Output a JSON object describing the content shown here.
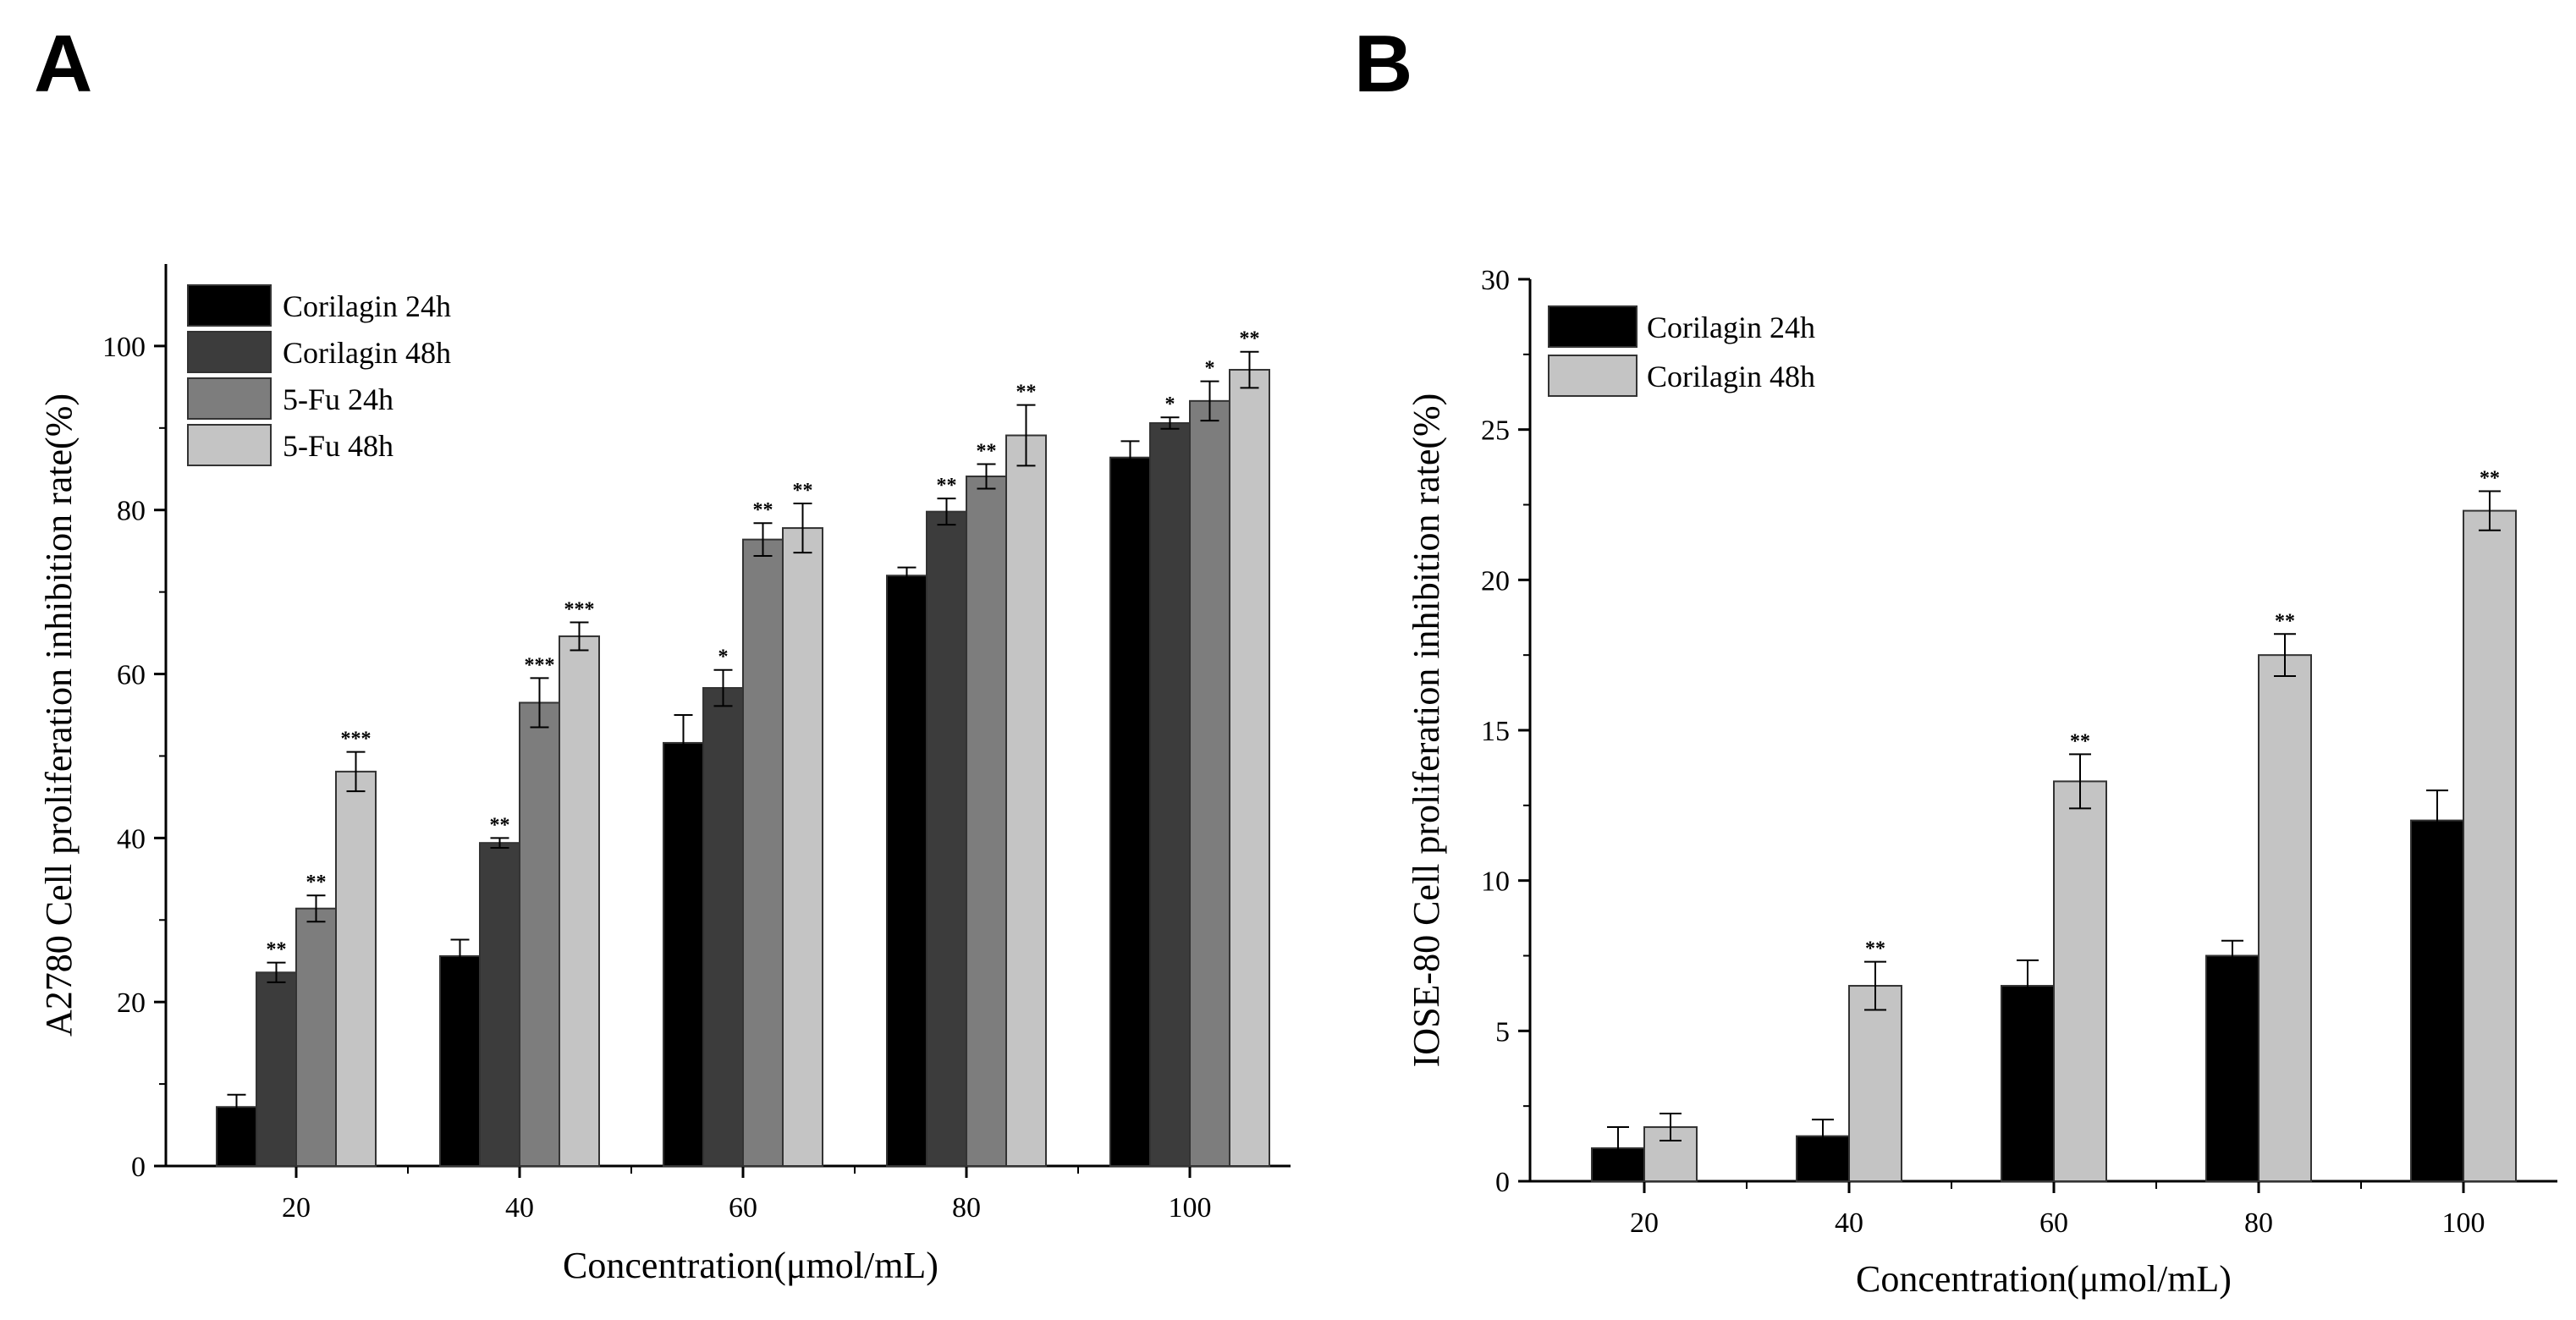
{
  "chart_data": [
    {
      "panel": "A",
      "type": "bar",
      "categories": [
        "20",
        "40",
        "60",
        "80",
        "100"
      ],
      "xlabel": "Concentration(μmol/mL)",
      "ylabel": "A2780 Cell proliferation inhibition rate(%)",
      "ylim": [
        0,
        110
      ],
      "yticks": [
        0,
        20,
        40,
        60,
        80,
        100
      ],
      "legend_position": "top-left",
      "series": [
        {
          "name": "Corilagin 24h",
          "color": "#000000",
          "values": [
            7.2,
            25.6,
            51.6,
            72.0,
            86.4
          ],
          "errors": [
            1.5,
            2.0,
            3.4,
            1.0,
            2.0
          ],
          "sig": [
            "",
            "",
            "",
            "",
            ""
          ]
        },
        {
          "name": "Corilagin 48h",
          "color": "#3c3c3c",
          "values": [
            23.6,
            39.4,
            58.3,
            79.8,
            90.6
          ],
          "errors": [
            1.2,
            0.6,
            2.2,
            1.6,
            0.7
          ],
          "sig": [
            "**",
            "**",
            "*",
            "**",
            "*"
          ]
        },
        {
          "name": "5-Fu 24h",
          "color": "#7d7d7d",
          "values": [
            31.4,
            56.5,
            76.4,
            84.1,
            93.3
          ],
          "errors": [
            1.6,
            3.0,
            2.0,
            1.5,
            2.4
          ],
          "sig": [
            "**",
            "***",
            "**",
            "**",
            "*"
          ]
        },
        {
          "name": "5-Fu 48h",
          "color": "#c4c4c4",
          "values": [
            48.1,
            64.6,
            77.8,
            89.1,
            97.1
          ],
          "errors": [
            2.4,
            1.7,
            3.0,
            3.7,
            2.2
          ],
          "sig": [
            "***",
            "***",
            "**",
            "**",
            "**"
          ]
        }
      ]
    },
    {
      "panel": "B",
      "type": "bar",
      "categories": [
        "20",
        "40",
        "60",
        "80",
        "100"
      ],
      "xlabel": "Concentration(μmol/mL)",
      "ylabel": "IOSE-80 Cell proliferation inhibition rate(%)",
      "ylim": [
        0,
        30
      ],
      "yticks": [
        0,
        5,
        10,
        15,
        20,
        25,
        30
      ],
      "legend_position": "top-left",
      "series": [
        {
          "name": "Corilagin 24h",
          "color": "#000000",
          "values": [
            1.1,
            1.5,
            6.5,
            7.5,
            12.0
          ],
          "errors": [
            0.7,
            0.55,
            0.85,
            0.5,
            1.0
          ],
          "sig": [
            "",
            "",
            "",
            "",
            ""
          ]
        },
        {
          "name": "Corilagin 48h",
          "color": "#c4c4c4",
          "values": [
            1.8,
            6.5,
            13.3,
            17.5,
            22.3
          ],
          "errors": [
            0.45,
            0.8,
            0.9,
            0.7,
            0.65
          ],
          "sig": [
            "",
            "**",
            "**",
            "**",
            "**"
          ]
        }
      ]
    }
  ]
}
